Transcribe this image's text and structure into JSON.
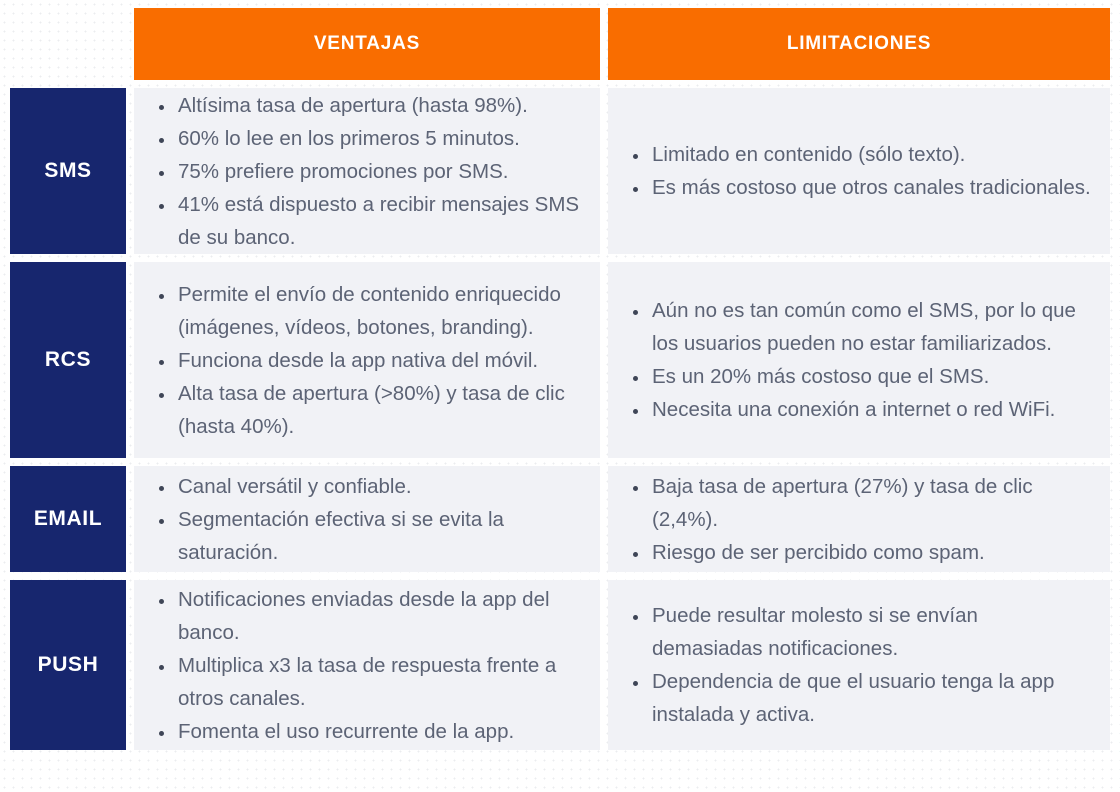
{
  "page": {
    "background_color": "#ffffff",
    "background_dot_color": "#ebecef"
  },
  "table": {
    "colors": {
      "header_bg": "#f96d00",
      "header_text": "#ffffff",
      "row_label_bg": "#17266e",
      "row_label_text": "#ffffff",
      "cell_bg": "#f1f2f6",
      "cell_text": "#5c6375"
    },
    "header": {
      "ventajas": "VENTAJAS",
      "limitaciones": "LIMITACIONES"
    },
    "rows": [
      {
        "label": "SMS",
        "ventajas": [
          "Altísima tasa de apertura (hasta 98%).",
          "60% lo lee en los primeros 5 minutos.",
          "75% prefiere promociones por SMS.",
          "41% está dispuesto a recibir mensajes SMS de su banco."
        ],
        "limitaciones": [
          "Limitado en contenido (sólo texto).",
          "Es más costoso que otros canales tradicionales."
        ]
      },
      {
        "label": "RCS",
        "ventajas": [
          "Permite el envío de contenido enriquecido (imágenes, vídeos, botones, branding).",
          "Funciona desde la app nativa del móvil.",
          "Alta tasa de apertura (>80%) y tasa de clic (hasta 40%)."
        ],
        "limitaciones": [
          "Aún no es tan común como el SMS, por lo que los usuarios pueden no estar familiarizados.",
          "Es un 20% más costoso que el SMS.",
          "Necesita una conexión a internet o red WiFi."
        ]
      },
      {
        "label": "EMAIL",
        "ventajas": [
          "Canal versátil y confiable.",
          "Segmentación efectiva si se evita la saturación."
        ],
        "limitaciones": [
          "Baja tasa de apertura (27%) y tasa de clic (2,4%).",
          "Riesgo de ser percibido como spam."
        ]
      },
      {
        "label": "PUSH",
        "ventajas": [
          "Notificaciones enviadas desde la app del banco.",
          "Multiplica x3 la tasa de respuesta frente a otros canales.",
          "Fomenta el uso recurrente de la app."
        ],
        "limitaciones": [
          "Puede resultar molesto si se envían demasiadas notificaciones.",
          "Dependencia de que el usuario tenga la app instalada y activa."
        ]
      }
    ]
  }
}
